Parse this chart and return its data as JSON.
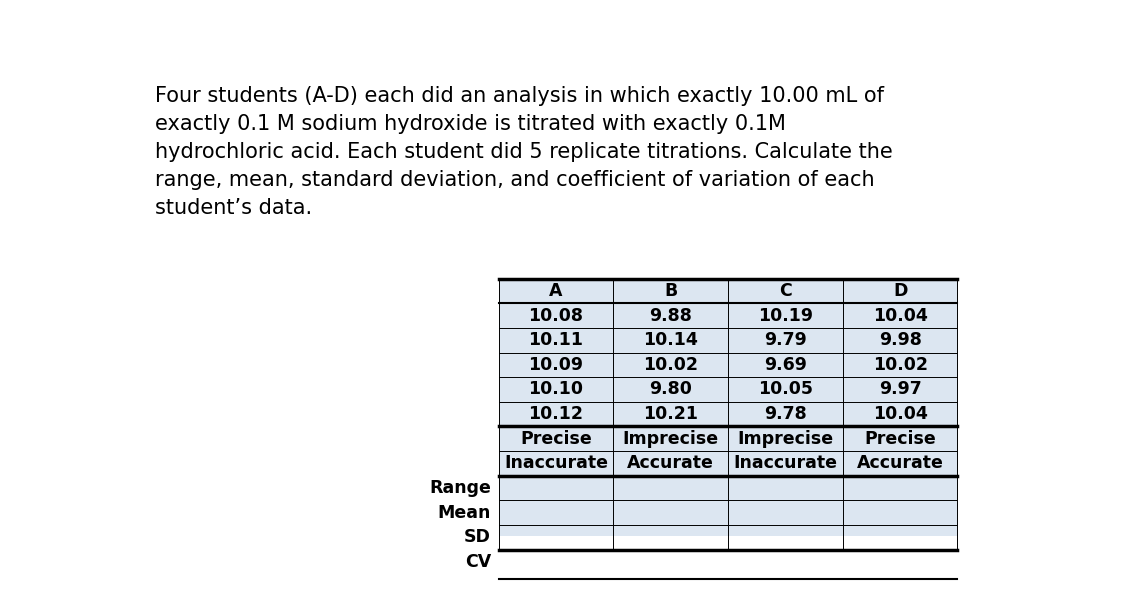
{
  "title_text": "Four students (A-D) each did an analysis in which exactly 10.00 mL of\nexactly 0.1 M sodium hydroxide is titrated with exactly 0.1M\nhydrochloric acid. Each student did 5 replicate titrations. Calculate the\nrange, mean, standard deviation, and coefficient of variation of each\nstudent’s data.",
  "columns": [
    "A",
    "B",
    "C",
    "D"
  ],
  "data_rows": [
    [
      "10.08",
      "9.88",
      "10.19",
      "10.04"
    ],
    [
      "10.11",
      "10.14",
      "9.79",
      "9.98"
    ],
    [
      "10.09",
      "10.02",
      "9.69",
      "10.02"
    ],
    [
      "10.10",
      "9.80",
      "10.05",
      "9.97"
    ],
    [
      "10.12",
      "10.21",
      "9.78",
      "10.04"
    ]
  ],
  "descriptor_rows": [
    [
      "Precise",
      "Imprecise",
      "Imprecise",
      "Precise"
    ],
    [
      "Inaccurate",
      "Accurate",
      "Inaccurate",
      "Accurate"
    ]
  ],
  "stat_labels": [
    "Range",
    "Mean",
    "SD"
  ],
  "cv_label": "CV",
  "bg_color": "#ffffff",
  "cell_bg": "#dce6f1",
  "text_color": "#000000",
  "title_fontsize": 15.0,
  "table_fontsize": 12.5,
  "row_label_fontsize": 12.5
}
